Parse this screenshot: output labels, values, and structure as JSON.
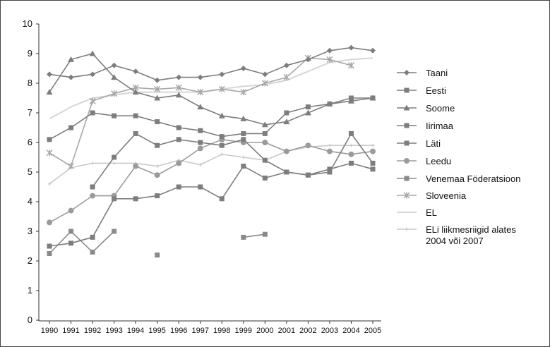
{
  "chart_data": {
    "type": "line",
    "x": [
      "1990",
      "1991",
      "1992",
      "1993",
      "1994",
      "1995",
      "1996",
      "1997",
      "1998",
      "1999",
      "2000",
      "2001",
      "2002",
      "2003",
      "2004",
      "2005"
    ],
    "ylim": [
      0,
      10
    ],
    "yticks": [
      "0",
      "1",
      "2",
      "3",
      "4",
      "5",
      "6",
      "7",
      "8",
      "9",
      "10"
    ],
    "grid": false,
    "legend_position": "right",
    "series": [
      {
        "name": "Taani",
        "color": "#7d7d7d",
        "marker": "diamond",
        "values": [
          8.3,
          8.2,
          8.3,
          8.6,
          8.4,
          8.1,
          8.2,
          8.2,
          8.3,
          8.5,
          8.3,
          8.6,
          8.8,
          9.1,
          9.2,
          9.1
        ]
      },
      {
        "name": "Eesti",
        "color": "#7d7d7d",
        "marker": "square",
        "values": [
          null,
          null,
          4.5,
          5.5,
          6.3,
          5.9,
          6.1,
          6.0,
          5.9,
          6.1,
          5.4,
          5.0,
          4.9,
          5.1,
          5.3,
          5.1
        ]
      },
      {
        "name": "Soome",
        "color": "#7d7d7d",
        "marker": "triangle",
        "values": [
          7.7,
          8.8,
          9.0,
          8.2,
          7.7,
          7.5,
          7.6,
          7.2,
          6.9,
          6.8,
          6.6,
          6.7,
          7.0,
          7.3,
          7.4,
          7.5
        ]
      },
      {
        "name": "Iirimaa",
        "color": "#7d7d7d",
        "marker": "square",
        "values": [
          6.1,
          6.5,
          7.0,
          6.9,
          6.9,
          6.7,
          6.5,
          6.4,
          6.2,
          6.3,
          6.3,
          7.0,
          7.2,
          7.3,
          7.5,
          7.5
        ]
      },
      {
        "name": "Läti",
        "color": "#7d7d7d",
        "marker": "square",
        "values": [
          2.5,
          2.6,
          2.8,
          4.1,
          4.1,
          4.2,
          4.5,
          4.5,
          4.1,
          5.2,
          4.8,
          5.0,
          4.9,
          5.0,
          6.3,
          5.3
        ]
      },
      {
        "name": "Leedu",
        "color": "#9b9b9b",
        "marker": "circle",
        "values": [
          3.3,
          3.7,
          4.2,
          4.2,
          5.2,
          4.9,
          5.3,
          5.8,
          6.1,
          6.0,
          6.0,
          5.7,
          5.9,
          5.7,
          5.6,
          5.7
        ]
      },
      {
        "name": "Venemaa Föderatsioon",
        "color": "#8a8a8a",
        "marker": "square",
        "values": [
          2.25,
          3.0,
          2.3,
          3.0,
          null,
          2.2,
          null,
          null,
          null,
          2.8,
          2.9,
          null,
          null,
          null,
          null,
          null
        ]
      },
      {
        "name": "Sloveenia",
        "color": "#a8a8a8",
        "marker": "star",
        "values": [
          5.65,
          5.2,
          7.4,
          7.65,
          7.85,
          7.8,
          7.85,
          7.7,
          7.8,
          7.7,
          8.0,
          8.2,
          8.85,
          8.8,
          8.6,
          null
        ]
      },
      {
        "name": "EL",
        "color": "#d6d6d6",
        "marker": "none",
        "values": [
          6.8,
          7.2,
          7.5,
          7.6,
          7.7,
          7.7,
          7.7,
          7.7,
          7.8,
          7.9,
          7.95,
          8.1,
          8.4,
          8.7,
          8.8,
          8.85
        ]
      },
      {
        "name": "ELi liikmesriigid alates 2004 või 2007",
        "color": "#c9c9c9",
        "marker": "plus",
        "values": [
          4.6,
          5.15,
          5.3,
          5.3,
          5.3,
          5.2,
          5.4,
          5.25,
          5.6,
          5.5,
          5.4,
          5.7,
          5.85,
          5.9,
          5.9,
          5.9
        ]
      }
    ]
  }
}
